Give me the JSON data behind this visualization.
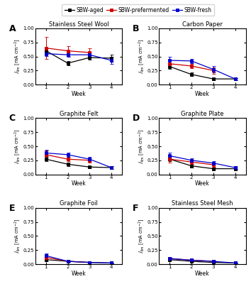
{
  "weeks": [
    1,
    2,
    3,
    4
  ],
  "panels": [
    {
      "label": "A",
      "title": "Stainless Steel Wool",
      "ylim": [
        0.0,
        1.0
      ],
      "yticks": [
        0.0,
        0.25,
        0.5,
        0.75,
        1.0
      ],
      "aged": {
        "y": [
          0.6,
          0.38,
          0.48,
          0.47
        ],
        "yerr": [
          0.05,
          0.04,
          0.04,
          0.06
        ]
      },
      "prefermented": {
        "y": [
          0.65,
          0.6,
          0.57,
          null
        ],
        "yerr": [
          0.2,
          0.09,
          0.08,
          null
        ]
      },
      "fresh": {
        "y": [
          0.55,
          0.53,
          0.53,
          0.43
        ],
        "yerr": [
          0.04,
          0.04,
          0.04,
          0.06
        ]
      }
    },
    {
      "label": "B",
      "title": "Carbon Paper",
      "ylim": [
        0.0,
        1.0
      ],
      "yticks": [
        0.0,
        0.25,
        0.5,
        0.75,
        1.0
      ],
      "aged": {
        "y": [
          0.32,
          0.18,
          0.1,
          0.1
        ],
        "yerr": [
          0.04,
          0.03,
          0.02,
          0.02
        ]
      },
      "prefermented": {
        "y": [
          0.37,
          0.33,
          0.25,
          null
        ],
        "yerr": [
          0.06,
          0.04,
          0.06,
          null
        ]
      },
      "fresh": {
        "y": [
          0.43,
          0.42,
          0.27,
          0.1
        ],
        "yerr": [
          0.06,
          0.04,
          0.06,
          0.02
        ]
      }
    },
    {
      "label": "C",
      "title": "Graphite Felt",
      "ylim": [
        0.0,
        1.0
      ],
      "yticks": [
        0.0,
        0.25,
        0.5,
        0.75,
        1.0
      ],
      "aged": {
        "y": [
          0.27,
          0.18,
          0.13,
          0.12
        ],
        "yerr": [
          0.04,
          0.03,
          0.02,
          0.02
        ]
      },
      "prefermented": {
        "y": [
          0.35,
          0.27,
          0.25,
          null
        ],
        "yerr": [
          0.07,
          0.04,
          0.04,
          null
        ]
      },
      "fresh": {
        "y": [
          0.38,
          0.35,
          0.27,
          0.12
        ],
        "yerr": [
          0.06,
          0.04,
          0.04,
          0.02
        ]
      }
    },
    {
      "label": "D",
      "title": "Graphite Plate",
      "ylim": [
        0.0,
        1.0
      ],
      "yticks": [
        0.0,
        0.25,
        0.5,
        0.75,
        1.0
      ],
      "aged": {
        "y": [
          0.27,
          0.15,
          0.1,
          0.1
        ],
        "yerr": [
          0.04,
          0.03,
          0.02,
          0.02
        ]
      },
      "prefermented": {
        "y": [
          0.27,
          0.22,
          0.17,
          null
        ],
        "yerr": [
          0.06,
          0.04,
          0.04,
          null
        ]
      },
      "fresh": {
        "y": [
          0.33,
          0.25,
          0.2,
          0.12
        ],
        "yerr": [
          0.05,
          0.03,
          0.03,
          0.02
        ]
      }
    },
    {
      "label": "E",
      "title": "Graphite Foil",
      "ylim": [
        0.0,
        1.0
      ],
      "yticks": [
        0.0,
        0.25,
        0.5,
        0.75,
        1.0
      ],
      "aged": {
        "y": [
          0.08,
          0.05,
          0.03,
          0.02
        ],
        "yerr": [
          0.03,
          0.01,
          0.01,
          0.01
        ]
      },
      "prefermented": {
        "y": [
          0.12,
          0.05,
          0.03,
          null
        ],
        "yerr": [
          0.04,
          0.01,
          0.01,
          null
        ]
      },
      "fresh": {
        "y": [
          0.15,
          0.05,
          0.03,
          0.02
        ],
        "yerr": [
          0.04,
          0.01,
          0.01,
          0.01
        ]
      }
    },
    {
      "label": "F",
      "title": "Stainless Steel Mesh",
      "ylim": [
        0.0,
        1.0
      ],
      "yticks": [
        0.0,
        0.25,
        0.5,
        0.75,
        1.0
      ],
      "aged": {
        "y": [
          0.08,
          0.05,
          0.03,
          0.02
        ],
        "yerr": [
          0.02,
          0.01,
          0.01,
          0.01
        ]
      },
      "prefermented": {
        "y": [
          0.1,
          0.07,
          0.05,
          null
        ],
        "yerr": [
          0.03,
          0.02,
          0.01,
          null
        ]
      },
      "fresh": {
        "y": [
          0.1,
          0.07,
          0.05,
          0.02
        ],
        "yerr": [
          0.02,
          0.01,
          0.01,
          0.01
        ]
      }
    }
  ],
  "colors": {
    "aged": "#000000",
    "prefermented": "#cc0000",
    "fresh": "#0000cc"
  },
  "legend_labels": [
    "SBW-aged",
    "SBW-prefermented",
    "SBW-fresh"
  ],
  "figsize": [
    3.54,
    4.0
  ],
  "dpi": 100
}
